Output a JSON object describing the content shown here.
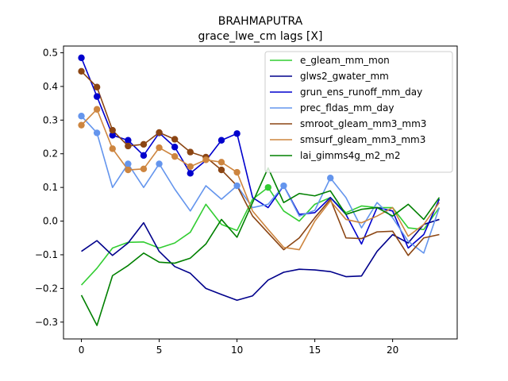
{
  "chart_data": {
    "type": "line",
    "title": "BRAHMAPUTRA",
    "subtitle": "grace_lwe_cm lags [X]",
    "xlabel": "",
    "ylabel": "",
    "xlim": [
      -1.15,
      24.15
    ],
    "ylim": [
      -0.35,
      0.52
    ],
    "xticks": [
      0,
      5,
      10,
      15,
      20
    ],
    "yticks": [
      -0.3,
      -0.2,
      -0.1,
      0.0,
      0.1,
      0.2,
      0.3,
      0.4,
      0.5
    ],
    "ytick_labels": [
      "−0.3",
      "−0.2",
      "−0.1",
      "0.0",
      "0.1",
      "0.2",
      "0.3",
      "0.4",
      "0.5"
    ],
    "legend_position": "top-right",
    "grid": false,
    "x": [
      0,
      1,
      2,
      3,
      4,
      5,
      6,
      7,
      8,
      9,
      10,
      11,
      12,
      13,
      14,
      15,
      16,
      17,
      18,
      19,
      20,
      21,
      22,
      23
    ],
    "series": [
      {
        "name": "e_gleam_mm_mon",
        "color": "#32cd32",
        "values": [
          -0.19,
          -0.14,
          -0.08,
          -0.063,
          -0.062,
          -0.08,
          -0.065,
          -0.033,
          0.05,
          -0.01,
          -0.028,
          0.065,
          0.1,
          0.03,
          0.0,
          0.05,
          0.07,
          0.025,
          0.045,
          0.04,
          0.04,
          -0.02,
          -0.025,
          0.04
        ],
        "markers": [
          12
        ]
      },
      {
        "name": "glws2_gwater_mm",
        "color": "#00008b",
        "values": [
          -0.09,
          -0.058,
          -0.102,
          -0.065,
          -0.005,
          -0.09,
          -0.135,
          -0.155,
          -0.2,
          -0.218,
          -0.235,
          -0.222,
          -0.175,
          -0.152,
          -0.143,
          -0.145,
          -0.15,
          -0.165,
          -0.163,
          -0.09,
          -0.04,
          -0.065,
          -0.01,
          0.005
        ],
        "markers": []
      },
      {
        "name": "grun_ens_runoff_mm_day",
        "color": "#0000cd",
        "values": [
          0.485,
          0.37,
          0.255,
          0.24,
          0.195,
          0.262,
          0.22,
          0.142,
          0.18,
          0.24,
          0.26,
          0.07,
          0.04,
          0.105,
          0.02,
          0.025,
          0.07,
          0.02,
          -0.068,
          0.04,
          0.03,
          -0.08,
          -0.04,
          0.065
        ],
        "markers": [
          0,
          1,
          2,
          3,
          4,
          5,
          6,
          7,
          9,
          10
        ]
      },
      {
        "name": "prec_fldas_mm_day",
        "color": "#6495ed",
        "values": [
          0.312,
          0.262,
          0.1,
          0.17,
          0.1,
          0.17,
          0.095,
          0.03,
          0.105,
          0.065,
          0.105,
          0.04,
          0.05,
          0.105,
          0.015,
          0.032,
          0.128,
          0.07,
          -0.02,
          0.055,
          0.01,
          -0.06,
          -0.095,
          0.04
        ],
        "markers": [
          0,
          1,
          3,
          5,
          10,
          13,
          16
        ]
      },
      {
        "name": "smroot_gleam_mm3_mm3",
        "color": "#8b4513",
        "values": [
          0.445,
          0.398,
          0.27,
          0.223,
          0.228,
          0.263,
          0.243,
          0.205,
          0.19,
          0.152,
          0.105,
          0.015,
          -0.035,
          -0.085,
          -0.05,
          0.01,
          0.065,
          -0.05,
          -0.052,
          -0.032,
          -0.03,
          -0.102,
          -0.05,
          -0.04
        ],
        "markers": [
          0,
          1,
          2,
          3,
          4,
          5,
          6,
          7,
          8,
          9
        ]
      },
      {
        "name": "smsurf_gleam_mm3_mm3",
        "color": "#cd853f",
        "values": [
          0.285,
          0.332,
          0.215,
          0.152,
          0.155,
          0.218,
          0.192,
          0.162,
          0.182,
          0.175,
          0.145,
          0.03,
          -0.025,
          -0.078,
          -0.085,
          0.0,
          0.06,
          0.005,
          -0.005,
          0.015,
          0.04,
          -0.045,
          -0.01,
          0.055
        ],
        "markers": [
          0,
          1,
          2,
          3,
          4,
          5,
          6,
          7,
          8,
          9,
          10
        ]
      },
      {
        "name": "lai_gimms4g_m2_m2",
        "color": "#008000",
        "values": [
          -0.22,
          -0.31,
          -0.162,
          -0.132,
          -0.095,
          -0.122,
          -0.125,
          -0.11,
          -0.068,
          0.005,
          -0.048,
          0.055,
          0.158,
          0.055,
          0.082,
          0.075,
          0.09,
          0.02,
          0.035,
          0.04,
          0.015,
          0.05,
          0.005,
          0.07
        ],
        "markers": []
      }
    ]
  }
}
